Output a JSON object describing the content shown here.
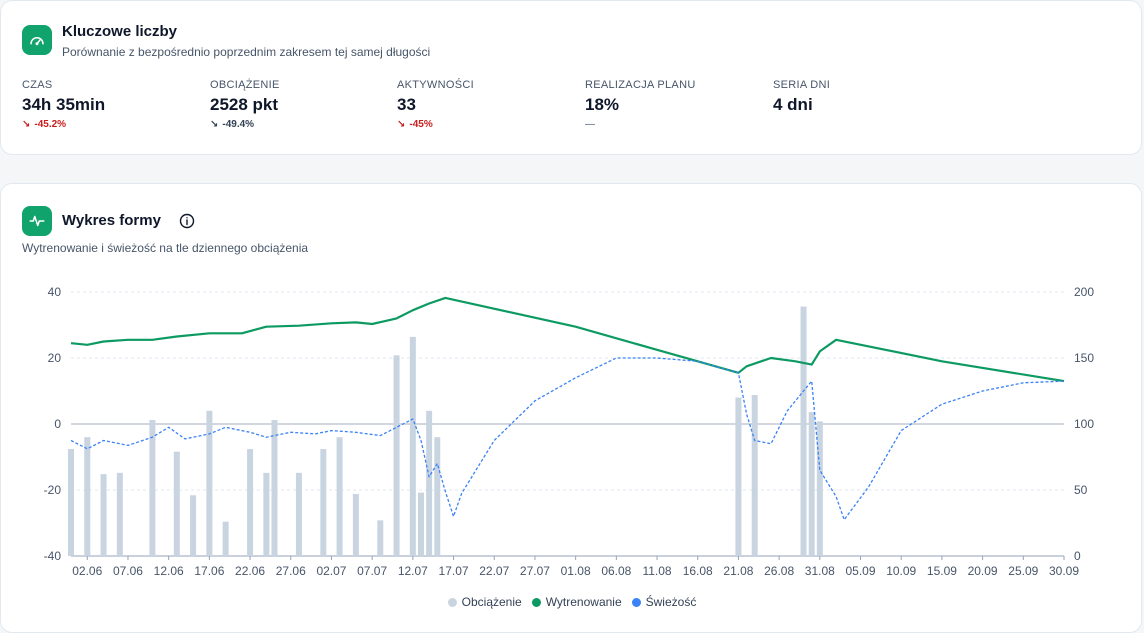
{
  "key_numbers": {
    "title": "Kluczowe liczby",
    "subtitle": "Porównanie z bezpośrednio poprzednim zakresem tej samej długości",
    "icon": "gauge-icon",
    "metrics": [
      {
        "label": "CZAS",
        "value": "34h 35min",
        "delta": "-45.2%",
        "trend": "down",
        "tone": "negative"
      },
      {
        "label": "OBCIĄŻENIE",
        "value": "2528 pkt",
        "delta": "-49.4%",
        "trend": "down",
        "tone": "neutral"
      },
      {
        "label": "AKTYWNOŚCI",
        "value": "33",
        "delta": "-45%",
        "trend": "down",
        "tone": "negative"
      },
      {
        "label": "REALIZACJA PLANU",
        "value": "18%",
        "delta": "—",
        "trend": "none",
        "tone": "none"
      },
      {
        "label": "SERIA DNI",
        "value": "4 dni",
        "delta": "",
        "trend": "none",
        "tone": "none"
      }
    ]
  },
  "form_chart": {
    "title": "Wykres formy",
    "subtitle": "Wytrenowanie i świeżość na tle dziennego obciążenia",
    "icon": "activity-pulse-icon",
    "info_icon": "info-icon"
  },
  "colors": {
    "accent": "#10a36b",
    "load_bar": "#c9d4e1",
    "fitness": "#0d9a62",
    "form": "#3b82f6",
    "negative": "#c81e1e"
  },
  "chart_data": {
    "type": "bar",
    "x_tick_labels": [
      "02.06",
      "07.06",
      "12.06",
      "17.06",
      "22.06",
      "27.06",
      "02.07",
      "07.07",
      "12.07",
      "17.07",
      "22.07",
      "27.07",
      "01.08",
      "06.08",
      "11.08",
      "16.08",
      "21.08",
      "26.08",
      "31.08",
      "05.09",
      "10.09",
      "15.09",
      "20.09",
      "25.09",
      "30.09"
    ],
    "x_range": [
      "31.05",
      "30.09"
    ],
    "y_left": {
      "label": "",
      "ticks": [
        40,
        20,
        0,
        -20,
        -40
      ],
      "range": [
        -40,
        40
      ]
    },
    "y_right": {
      "label": "",
      "ticks": [
        200,
        150,
        100,
        50,
        0
      ],
      "range": [
        0,
        200
      ]
    },
    "grid": "dashed horizontal",
    "legend_position": "bottom-center",
    "series": [
      {
        "name": "Obciążenie",
        "type": "bar",
        "axis": "right",
        "values": [
          [
            "31.05",
            81
          ],
          [
            "02.06",
            90
          ],
          [
            "04.06",
            62
          ],
          [
            "06.06",
            63
          ],
          [
            "10.06",
            103
          ],
          [
            "13.06",
            79
          ],
          [
            "15.06",
            46
          ],
          [
            "17.06",
            110
          ],
          [
            "19.06",
            26
          ],
          [
            "22.06",
            81
          ],
          [
            "24.06",
            63
          ],
          [
            "25.06",
            103
          ],
          [
            "28.06",
            63
          ],
          [
            "01.07",
            81
          ],
          [
            "03.07",
            90
          ],
          [
            "05.07",
            47
          ],
          [
            "08.07",
            27
          ],
          [
            "10.07",
            152
          ],
          [
            "12.07",
            166
          ],
          [
            "13.07",
            48
          ],
          [
            "14.07",
            110
          ],
          [
            "15.07",
            90
          ],
          [
            "21.08",
            120
          ],
          [
            "23.08",
            122
          ],
          [
            "29.08",
            189
          ],
          [
            "30.08",
            109
          ],
          [
            "31.08",
            102
          ]
        ]
      },
      {
        "name": "Wytrenowanie",
        "type": "line",
        "axis": "left",
        "values": [
          [
            "31.05",
            24.5
          ],
          [
            "02.06",
            24
          ],
          [
            "04.06",
            25
          ],
          [
            "07.06",
            25.5
          ],
          [
            "10.06",
            25.5
          ],
          [
            "13.06",
            26.5
          ],
          [
            "17.06",
            27.5
          ],
          [
            "21.06",
            27.5
          ],
          [
            "24.06",
            29.5
          ],
          [
            "28.06",
            29.8
          ],
          [
            "02.07",
            30.5
          ],
          [
            "05.07",
            30.8
          ],
          [
            "07.07",
            30.3
          ],
          [
            "10.07",
            32
          ],
          [
            "12.07",
            34.5
          ],
          [
            "14.07",
            36.5
          ],
          [
            "16.07",
            38.2
          ],
          [
            "01.08",
            29.5
          ],
          [
            "11.08",
            22.5
          ],
          [
            "21.08",
            15.5
          ],
          [
            "22.08",
            17.5
          ],
          [
            "25.08",
            20
          ],
          [
            "28.08",
            19
          ],
          [
            "30.08",
            18
          ],
          [
            "31.08",
            22
          ],
          [
            "02.09",
            25.5
          ],
          [
            "15.09",
            19
          ],
          [
            "30.09",
            13
          ]
        ]
      },
      {
        "name": "Świeżość",
        "type": "line",
        "axis": "left",
        "style": "dashed",
        "values": [
          [
            "31.05",
            -5
          ],
          [
            "02.06",
            -7.5
          ],
          [
            "04.06",
            -5
          ],
          [
            "07.06",
            -6.5
          ],
          [
            "10.06",
            -4
          ],
          [
            "12.06",
            -1
          ],
          [
            "14.06",
            -4.5
          ],
          [
            "17.06",
            -3
          ],
          [
            "19.06",
            -1
          ],
          [
            "22.06",
            -2.5
          ],
          [
            "24.06",
            -4
          ],
          [
            "27.06",
            -2.5
          ],
          [
            "30.06",
            -3
          ],
          [
            "02.07",
            -2
          ],
          [
            "05.07",
            -2.5
          ],
          [
            "08.07",
            -3.5
          ],
          [
            "10.07",
            -1
          ],
          [
            "12.07",
            1.5
          ],
          [
            "13.07",
            -5
          ],
          [
            "14.07",
            -16
          ],
          [
            "15.07",
            -12
          ],
          [
            "16.07",
            -20.5
          ],
          [
            "17.07",
            -28
          ],
          [
            "18.07",
            -21
          ],
          [
            "22.07",
            -5
          ],
          [
            "27.07",
            7
          ],
          [
            "01.08",
            14
          ],
          [
            "06.08",
            20
          ],
          [
            "11.08",
            20
          ],
          [
            "16.08",
            19
          ],
          [
            "21.08",
            15.5
          ],
          [
            "22.08",
            3
          ],
          [
            "23.08",
            -5
          ],
          [
            "25.08",
            -6
          ],
          [
            "27.08",
            4
          ],
          [
            "29.08",
            10
          ],
          [
            "30.08",
            13
          ],
          [
            "31.08",
            -14
          ],
          [
            "02.09",
            -22
          ],
          [
            "03.09",
            -29
          ],
          [
            "06.09",
            -19
          ],
          [
            "10.09",
            -2
          ],
          [
            "15.09",
            6
          ],
          [
            "20.09",
            10
          ],
          [
            "25.09",
            12.5
          ],
          [
            "30.09",
            13
          ]
        ]
      }
    ]
  }
}
